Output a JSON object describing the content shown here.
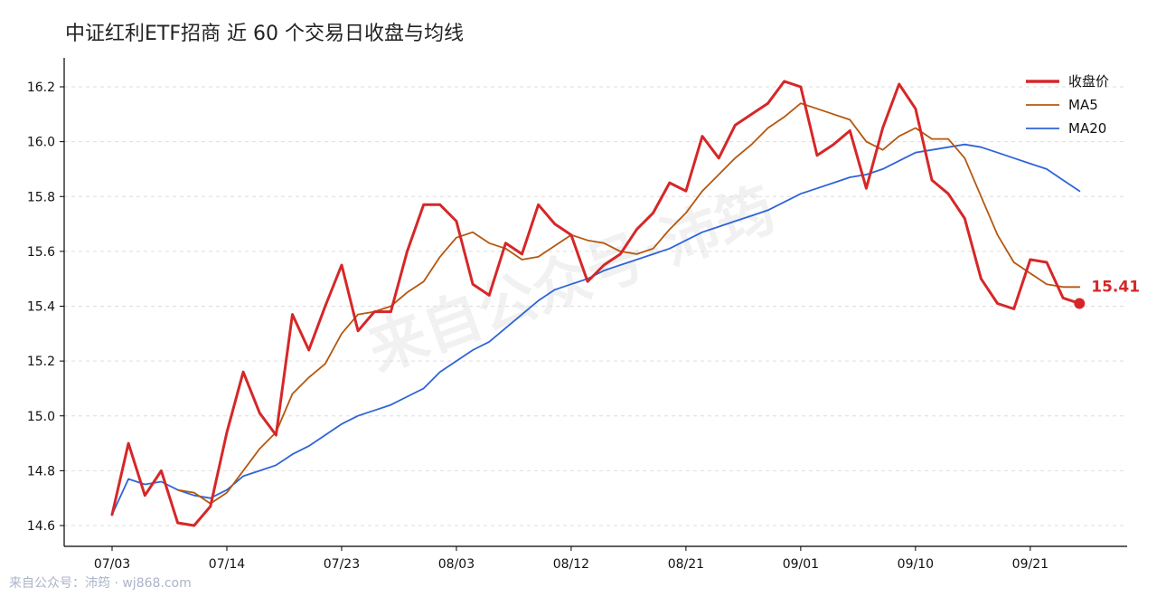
{
  "footer": "来自公众号：沛筠 · wj868.com",
  "watermark": "来自公众号·沛筠",
  "chart_data": {
    "type": "line",
    "title": "中证红利ETF招商 近 60 个交易日收盘与均线",
    "xlabel": "",
    "ylabel": "",
    "ylim": [
      14.55,
      16.3
    ],
    "yticks": [
      14.6,
      14.8,
      15.0,
      15.2,
      15.4,
      15.6,
      15.8,
      16.0,
      16.2
    ],
    "ytick_labels": [
      "14.6",
      "14.8",
      "15.0",
      "15.2",
      "15.4",
      "15.6",
      "15.8",
      "16.0",
      "16.2"
    ],
    "xtick_index": [
      0,
      7,
      14,
      21,
      28,
      35,
      42,
      49,
      56
    ],
    "xtick_labels": [
      "07/03",
      "07/14",
      "07/23",
      "08/03",
      "08/12",
      "08/21",
      "09/01",
      "09/10",
      "09/21"
    ],
    "grid": true,
    "legend": "top-right",
    "end_label": "15.41",
    "colors": {
      "close": "#d62728",
      "ma5": "#b5570f",
      "ma20": "#2f64d8",
      "grid": "#dddddd"
    },
    "series": [
      {
        "name": "收盘价",
        "values": [
          14.64,
          14.9,
          14.71,
          14.8,
          14.61,
          14.6,
          14.67,
          14.94,
          15.16,
          15.01,
          14.93,
          15.37,
          15.24,
          15.4,
          15.55,
          15.31,
          15.38,
          15.38,
          15.6,
          15.77,
          15.77,
          15.71,
          15.48,
          15.44,
          15.63,
          15.59,
          15.77,
          15.7,
          15.66,
          15.49,
          15.55,
          15.59,
          15.68,
          15.74,
          15.85,
          15.82,
          16.02,
          15.94,
          16.06,
          16.1,
          16.14,
          16.22,
          16.2,
          15.95,
          15.99,
          16.04,
          15.83,
          16.05,
          16.21,
          16.12,
          15.86,
          15.81,
          15.72,
          15.5,
          15.41,
          15.39,
          15.57,
          15.56,
          15.43,
          15.41
        ]
      },
      {
        "name": "MA5",
        "values": [
          null,
          null,
          null,
          null,
          14.73,
          14.72,
          14.68,
          14.72,
          14.8,
          14.88,
          14.94,
          15.08,
          15.14,
          15.19,
          15.3,
          15.37,
          15.38,
          15.4,
          15.45,
          15.49,
          15.58,
          15.65,
          15.67,
          15.63,
          15.61,
          15.57,
          15.58,
          15.62,
          15.66,
          15.64,
          15.63,
          15.6,
          15.59,
          15.61,
          15.68,
          15.74,
          15.82,
          15.88,
          15.94,
          15.99,
          16.05,
          16.09,
          16.14,
          16.12,
          16.1,
          16.08,
          16.0,
          15.97,
          16.02,
          16.05,
          16.01,
          16.01,
          15.94,
          15.8,
          15.66,
          15.56,
          15.52,
          15.48,
          15.47,
          15.47
        ]
      },
      {
        "name": "MA20",
        "values": [
          14.64,
          14.77,
          14.75,
          14.76,
          14.73,
          14.71,
          14.7,
          14.73,
          14.78,
          14.8,
          14.82,
          14.86,
          14.89,
          14.93,
          14.97,
          15.0,
          15.02,
          15.04,
          15.07,
          15.1,
          15.16,
          15.2,
          15.24,
          15.27,
          15.32,
          15.37,
          15.42,
          15.46,
          15.48,
          15.5,
          15.53,
          15.55,
          15.57,
          15.59,
          15.61,
          15.64,
          15.67,
          15.69,
          15.71,
          15.73,
          15.75,
          15.78,
          15.81,
          15.83,
          15.85,
          15.87,
          15.88,
          15.9,
          15.93,
          15.96,
          15.97,
          15.98,
          15.99,
          15.98,
          15.96,
          15.94,
          15.92,
          15.9,
          15.86,
          15.82
        ]
      }
    ]
  }
}
